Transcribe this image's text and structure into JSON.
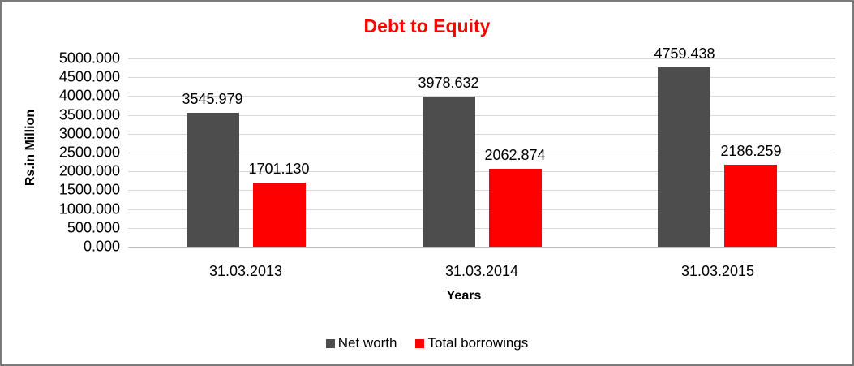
{
  "window": {
    "background_color": "#ffffff",
    "border_color": "#7b7b7b"
  },
  "chart_data": {
    "type": "bar",
    "title": "Debt to Equity",
    "title_color": "#ff0000",
    "xlabel": "Years",
    "ylabel": "Rs.in Million",
    "categories": [
      "31.03.2013",
      "31.03.2014",
      "31.03.2015"
    ],
    "series": [
      {
        "name": "Net worth",
        "color": "#4d4d4d",
        "values": [
          3545.979,
          3978.632,
          4759.438
        ],
        "value_labels": [
          "3545.979",
          "3978.632",
          "4759.438"
        ]
      },
      {
        "name": "Total borrowings",
        "color": "#ff0000",
        "values": [
          1701.13,
          2062.874,
          2186.259
        ],
        "value_labels": [
          "1701.130",
          "2062.874",
          "2186.259"
        ]
      }
    ],
    "ylim": [
      0,
      5000
    ],
    "ytick_step": 500,
    "ytick_labels_top_to_bottom": [
      "5000.000",
      "4500.000",
      "4000.000",
      "3500.000",
      "3000.000",
      "2500.000",
      "2000.000",
      "1500.000",
      "1000.000",
      "500.000",
      "0.000"
    ],
    "grid": true,
    "gridline_color": "#d9d9d9",
    "axis_line_color": "#bfbfbf",
    "legend_position": "bottom",
    "data_label_color": "#000000"
  }
}
